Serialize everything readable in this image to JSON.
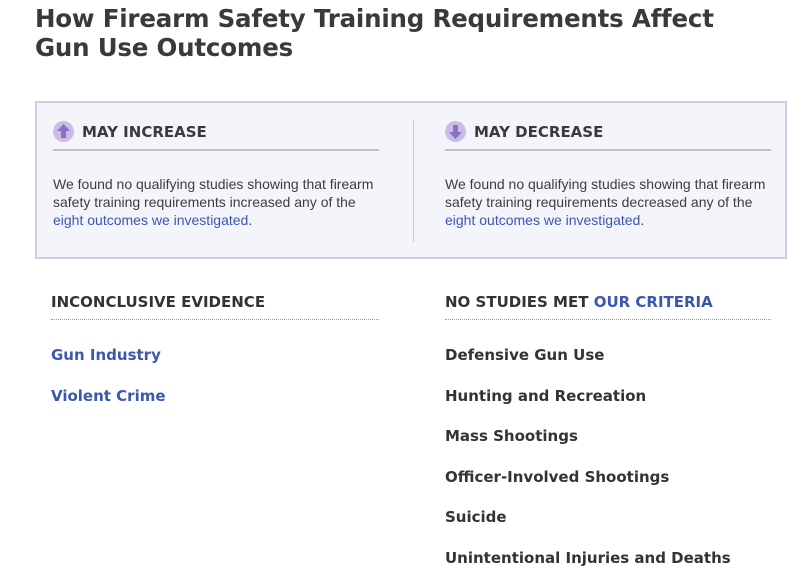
{
  "page": {
    "title": "How Firearm Safety Training Requirements Affect Gun Use Outcomes"
  },
  "effects": {
    "increase": {
      "icon": "arrow-up-icon",
      "title": "MAY INCREASE",
      "text_before": "We found no qualifying studies showing that firearm safety training requirements increased any of the ",
      "link": "eight outcomes we investigated",
      "text_after": "."
    },
    "decrease": {
      "icon": "arrow-down-icon",
      "title": "MAY DECREASE",
      "text_before": "We found no qualifying studies showing that firearm safety training requirements decreased any of the ",
      "link": "eight outcomes we investigated",
      "text_after": "."
    }
  },
  "inconclusive": {
    "title": "INCONCLUSIVE EVIDENCE",
    "items": [
      "Gun Industry",
      "Violent Crime"
    ]
  },
  "no_studies": {
    "title_prefix": "NO STUDIES MET ",
    "title_link": "OUR CRITERIA",
    "items": [
      "Defensive Gun Use",
      "Hunting and Recreation",
      "Mass Shootings",
      "Officer-Involved Shootings",
      "Suicide",
      "Unintentional Injuries and Deaths"
    ]
  },
  "colors": {
    "link": "#3b57b0",
    "box_background": "#f4f4fb",
    "box_border": "#cfcde3",
    "icon_background": "#c9bde6",
    "icon_arrow": "#8b6fc7"
  }
}
